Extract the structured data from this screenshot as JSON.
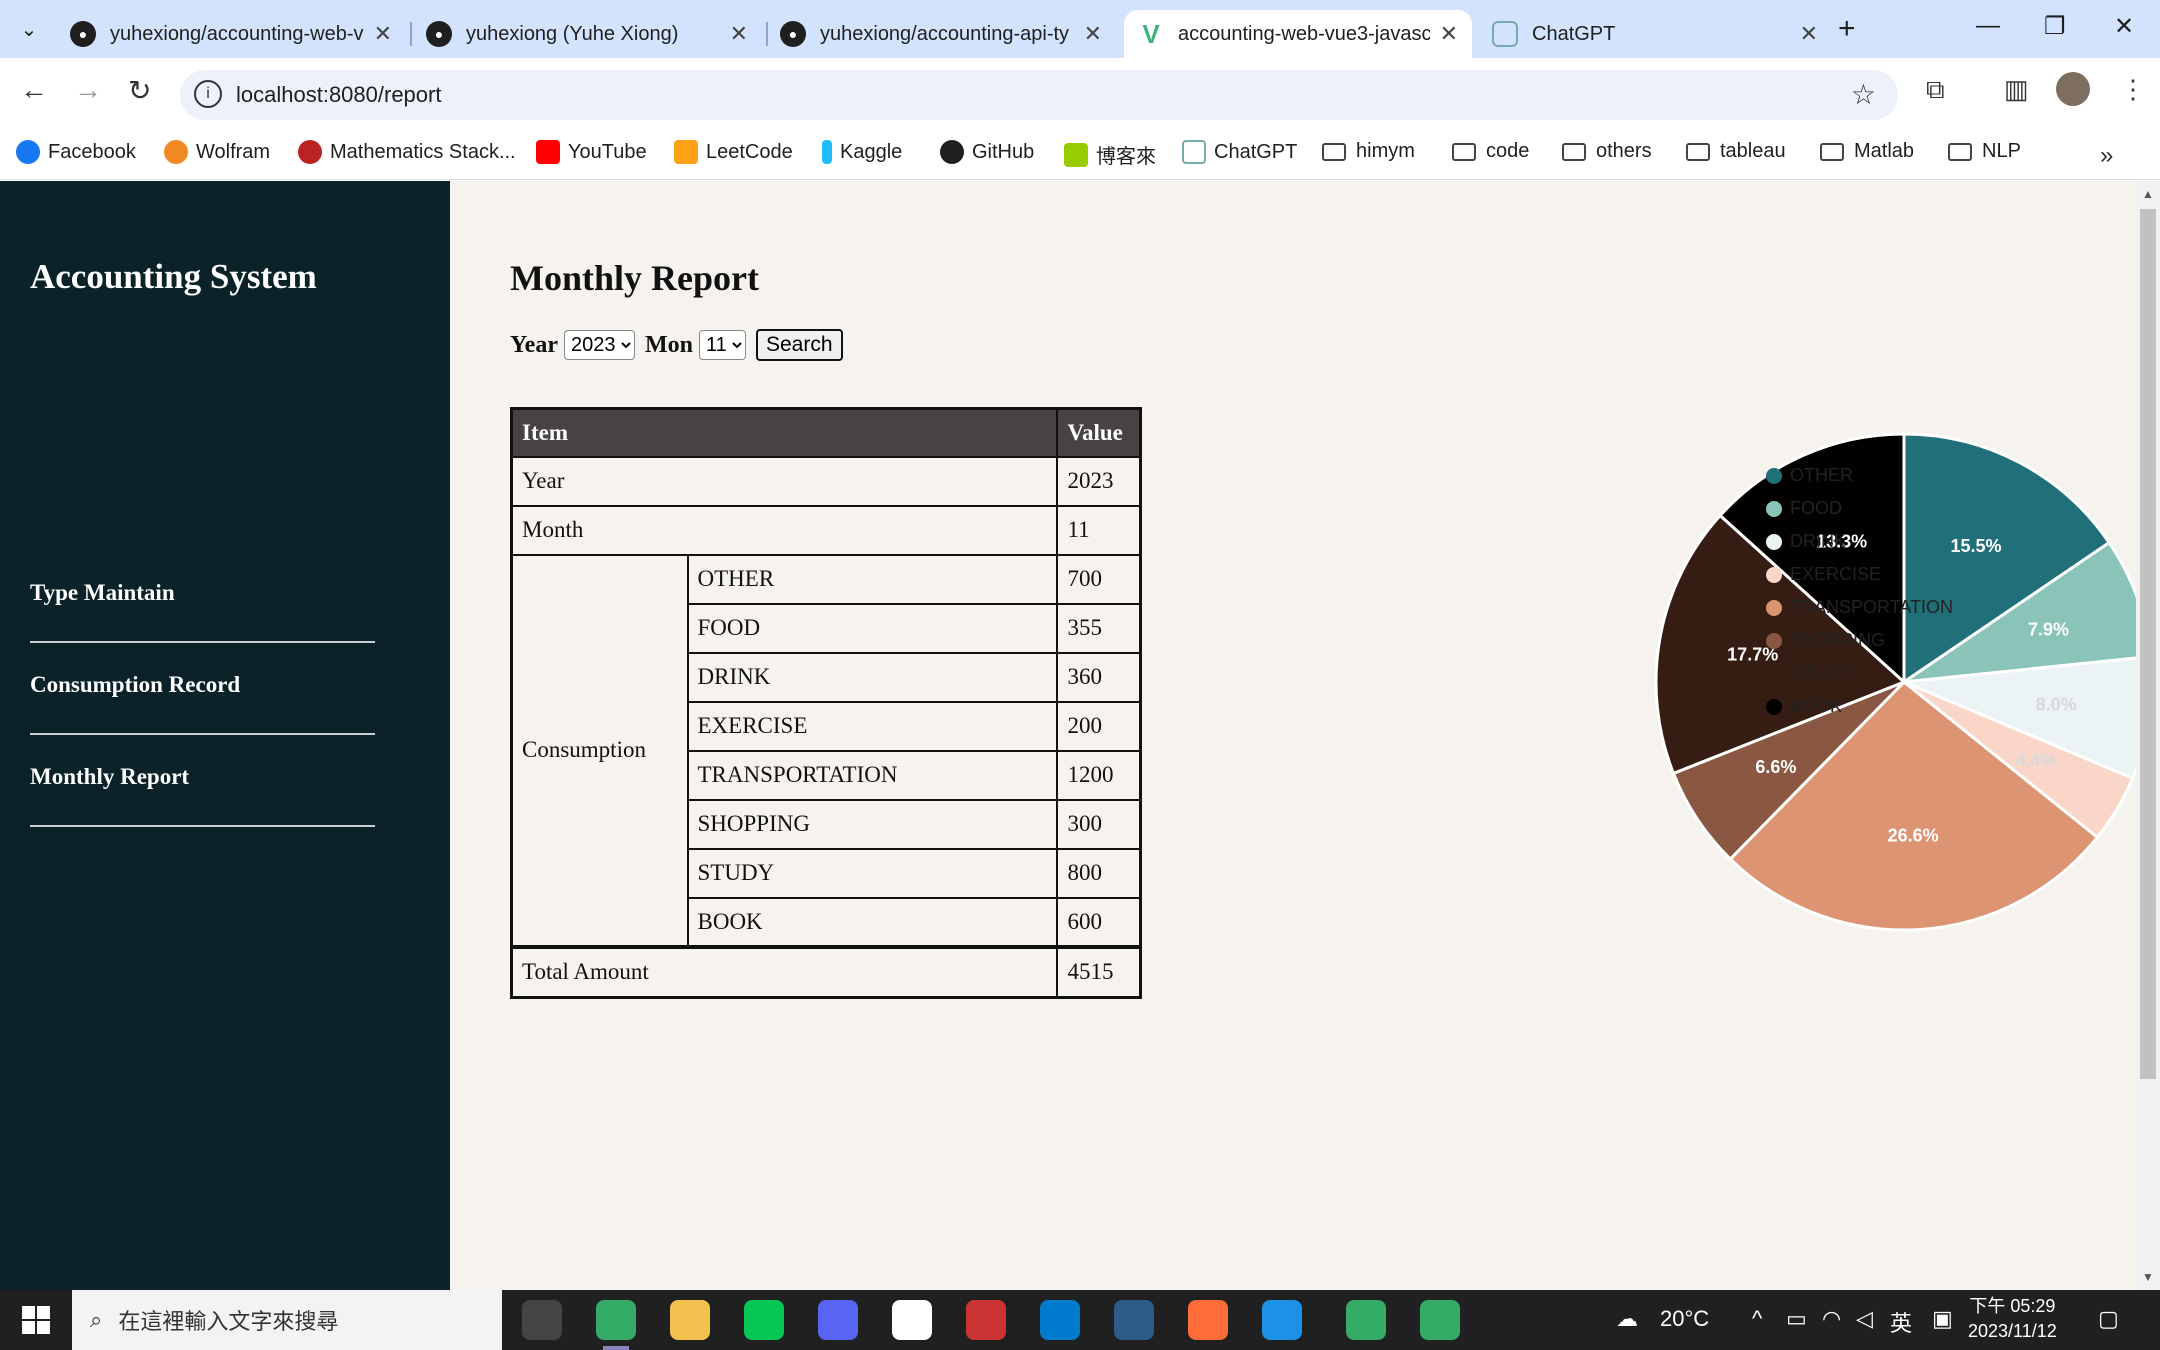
{
  "browser": {
    "tabs": [
      {
        "title": "yuhexiong/accounting-web-v",
        "icon": "github-icon"
      },
      {
        "title": "yuhexiong (Yuhe Xiong)",
        "icon": "github-icon"
      },
      {
        "title": "yuhexiong/accounting-api-ty",
        "icon": "github-icon"
      },
      {
        "title": "accounting-web-vue3-javasc",
        "icon": "vue-icon"
      },
      {
        "title": "ChatGPT",
        "icon": "chatgpt-icon"
      }
    ],
    "url": "localhost:8080/report",
    "bookmarks": [
      "Facebook",
      "Wolfram",
      "Mathematics Stack...",
      "YouTube",
      "LeetCode",
      "Kaggle",
      "GitHub",
      "博客來",
      "ChatGPT",
      "himym",
      "code",
      "others",
      "tableau",
      "Matlab",
      "NLP"
    ]
  },
  "sidebar": {
    "brand": "Accounting System",
    "items": [
      {
        "label": "Type Maintain"
      },
      {
        "label": "Consumption Record"
      },
      {
        "label": "Monthly Report"
      }
    ]
  },
  "report": {
    "title": "Monthly Report",
    "year_label": "Year",
    "year_value": "2023",
    "month_label": "Mon",
    "month_value": "11",
    "search_label": "Search",
    "table": {
      "headers": [
        "Item",
        "Value"
      ],
      "year_label": "Year",
      "year_value": "2023",
      "month_label": "Month",
      "month_value": "11",
      "consumption_label": "Consumption",
      "rows": [
        {
          "type": "OTHER",
          "value": "700"
        },
        {
          "type": "FOOD",
          "value": "355"
        },
        {
          "type": "DRINK",
          "value": "360"
        },
        {
          "type": "EXERCISE",
          "value": "200"
        },
        {
          "type": "TRANSPORTATION",
          "value": "1200"
        },
        {
          "type": "SHOPPING",
          "value": "300"
        },
        {
          "type": "STUDY",
          "value": "800"
        },
        {
          "type": "BOOK",
          "value": "600"
        }
      ],
      "total_label": "Total Amount",
      "total_value": "4515"
    }
  },
  "chart_data": {
    "type": "pie",
    "categories": [
      "OTHER",
      "FOOD",
      "DRINK",
      "EXERCISE",
      "TRANSPORTATION",
      "SHOPPING",
      "STUDY",
      "BOOK"
    ],
    "values": [
      700,
      355,
      360,
      200,
      1200,
      300,
      800,
      600
    ],
    "labels": [
      "15.5%",
      "7.9%",
      "8.0%",
      "4.4%",
      "26.6%",
      "6.6%",
      "17.7%",
      "13.3%"
    ],
    "colors": [
      "#216f78",
      "#8ac4b8",
      "#ebf3f5",
      "#f9d6c8",
      "#dc9472",
      "#8a5842",
      "#351d14",
      "#030000"
    ],
    "label_colors": [
      "#ffffff",
      "#ffffff",
      "#d8d8d8",
      "#d8d8d8",
      "#ffffff",
      "#ffffff",
      "#ffffff",
      "#ffffff"
    ],
    "legend_position": "right"
  },
  "taskbar": {
    "search_placeholder": "在這裡輸入文字來搜尋",
    "weather": "20°C",
    "ime": "英",
    "time": "下午 05:29",
    "date": "2023/11/12"
  }
}
